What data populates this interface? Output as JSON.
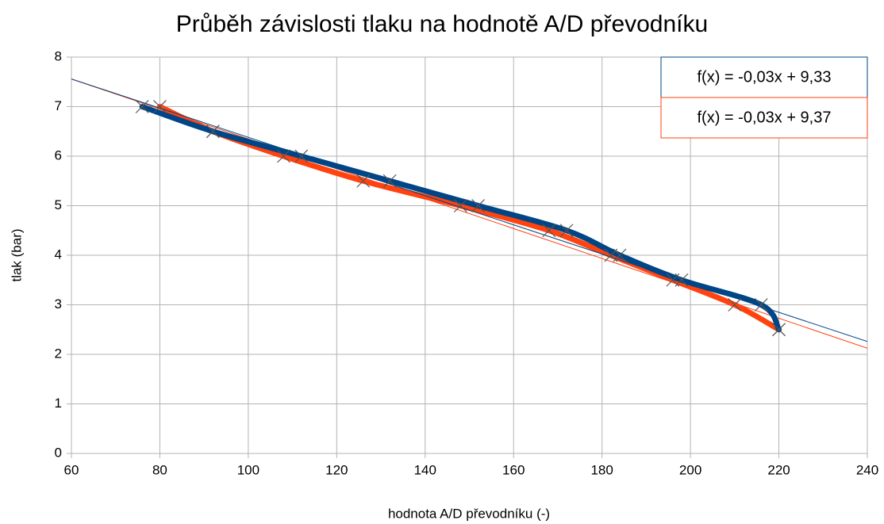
{
  "chart_data": {
    "type": "line",
    "title": "Průběh závislosti tlaku na hodnotě A/D převodníku",
    "xlabel": "hodnota A/D převodníku (-)",
    "ylabel": "tlak (bar)",
    "xlim": [
      60,
      240
    ],
    "ylim": [
      0,
      8
    ],
    "xticks": [
      60,
      80,
      100,
      120,
      140,
      160,
      180,
      200,
      220,
      240
    ],
    "yticks": [
      0,
      1,
      2,
      3,
      4,
      5,
      6,
      7,
      8
    ],
    "grid": true,
    "series": [
      {
        "color": "#ff420e",
        "x": [
          80,
          92,
          108,
          126,
          148,
          168,
          182,
          196,
          210,
          220
        ],
        "values": [
          7,
          6.5,
          6,
          5.5,
          5,
          4.5,
          4,
          3.5,
          3,
          2.5
        ],
        "trendline_label": "f(x) = -0,03x + 9,37"
      },
      {
        "color": "#004586",
        "x": [
          76,
          92,
          112,
          132,
          152,
          172,
          184,
          198,
          216,
          220
        ],
        "values": [
          7,
          6.5,
          6,
          5.5,
          5,
          4.5,
          4,
          3.5,
          3,
          2.5
        ],
        "trendline_label": "f(x) = -0,03x + 9,33"
      }
    ]
  }
}
